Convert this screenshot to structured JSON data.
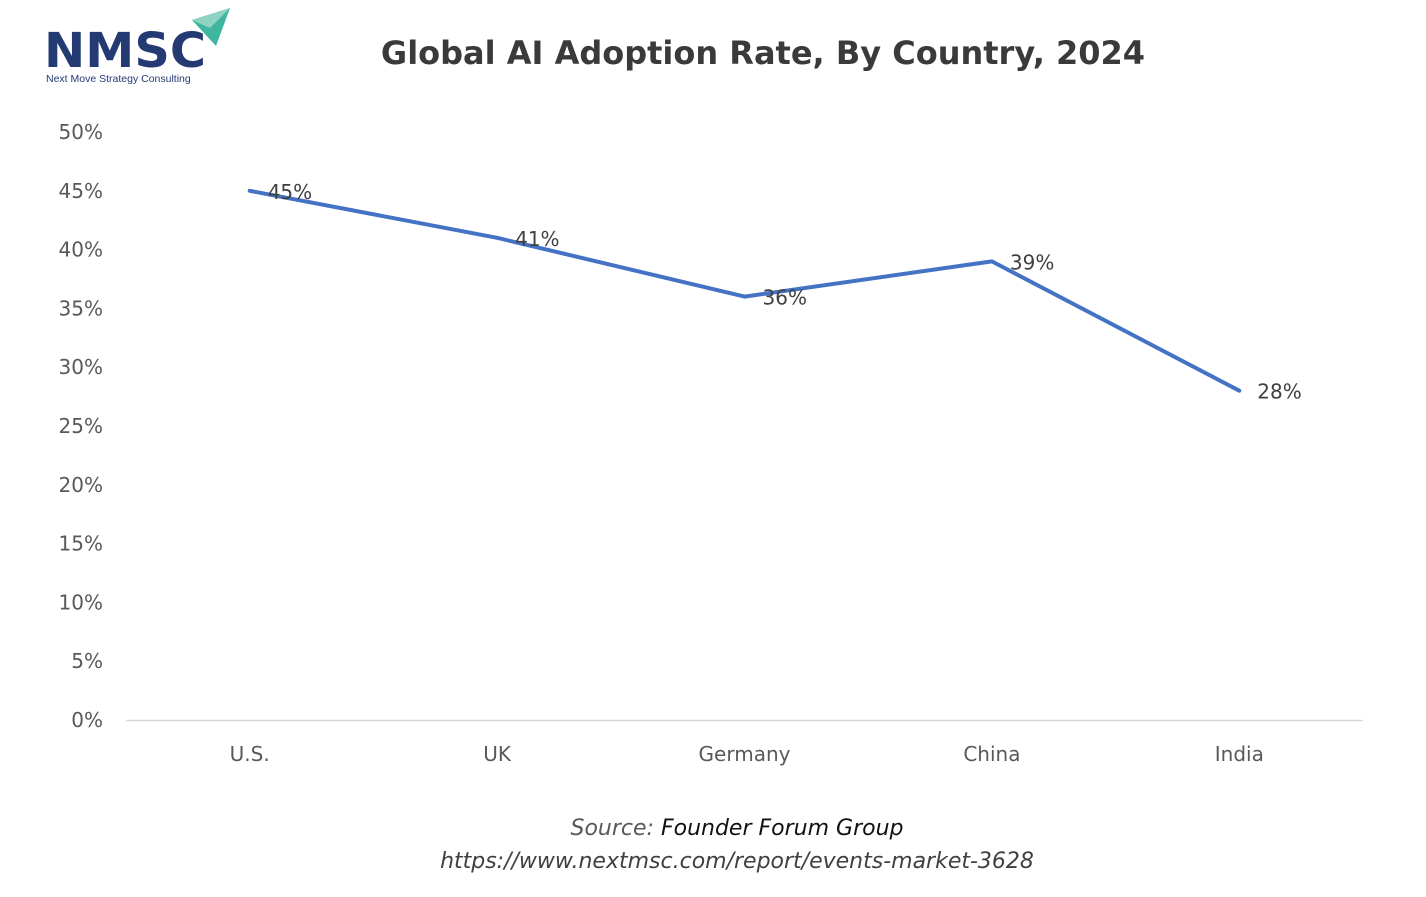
{
  "logo": {
    "text": "NMSC",
    "tagline": "Next Move Strategy Consulting"
  },
  "chart_data": {
    "type": "line",
    "title": "Global AI Adoption Rate, By Country, 2024",
    "categories": [
      "U.S.",
      "UK",
      "Germany",
      "China",
      "India"
    ],
    "series": [
      {
        "values": [
          45,
          41,
          36,
          39,
          28
        ]
      }
    ],
    "data_labels": [
      "45%",
      "41%",
      "36%",
      "39%",
      "28%"
    ],
    "y_ticks": [
      "0%",
      "5%",
      "10%",
      "15%",
      "20%",
      "25%",
      "30%",
      "35%",
      "40%",
      "45%",
      "50%"
    ],
    "ylim": [
      0,
      50
    ],
    "grid": false,
    "legend": "none",
    "line_color": "#4472c4"
  },
  "source": {
    "prefix": "Source: ",
    "name": "Founder Forum Group",
    "url": "https://www.nextmsc.com/report/events-market-3628"
  }
}
